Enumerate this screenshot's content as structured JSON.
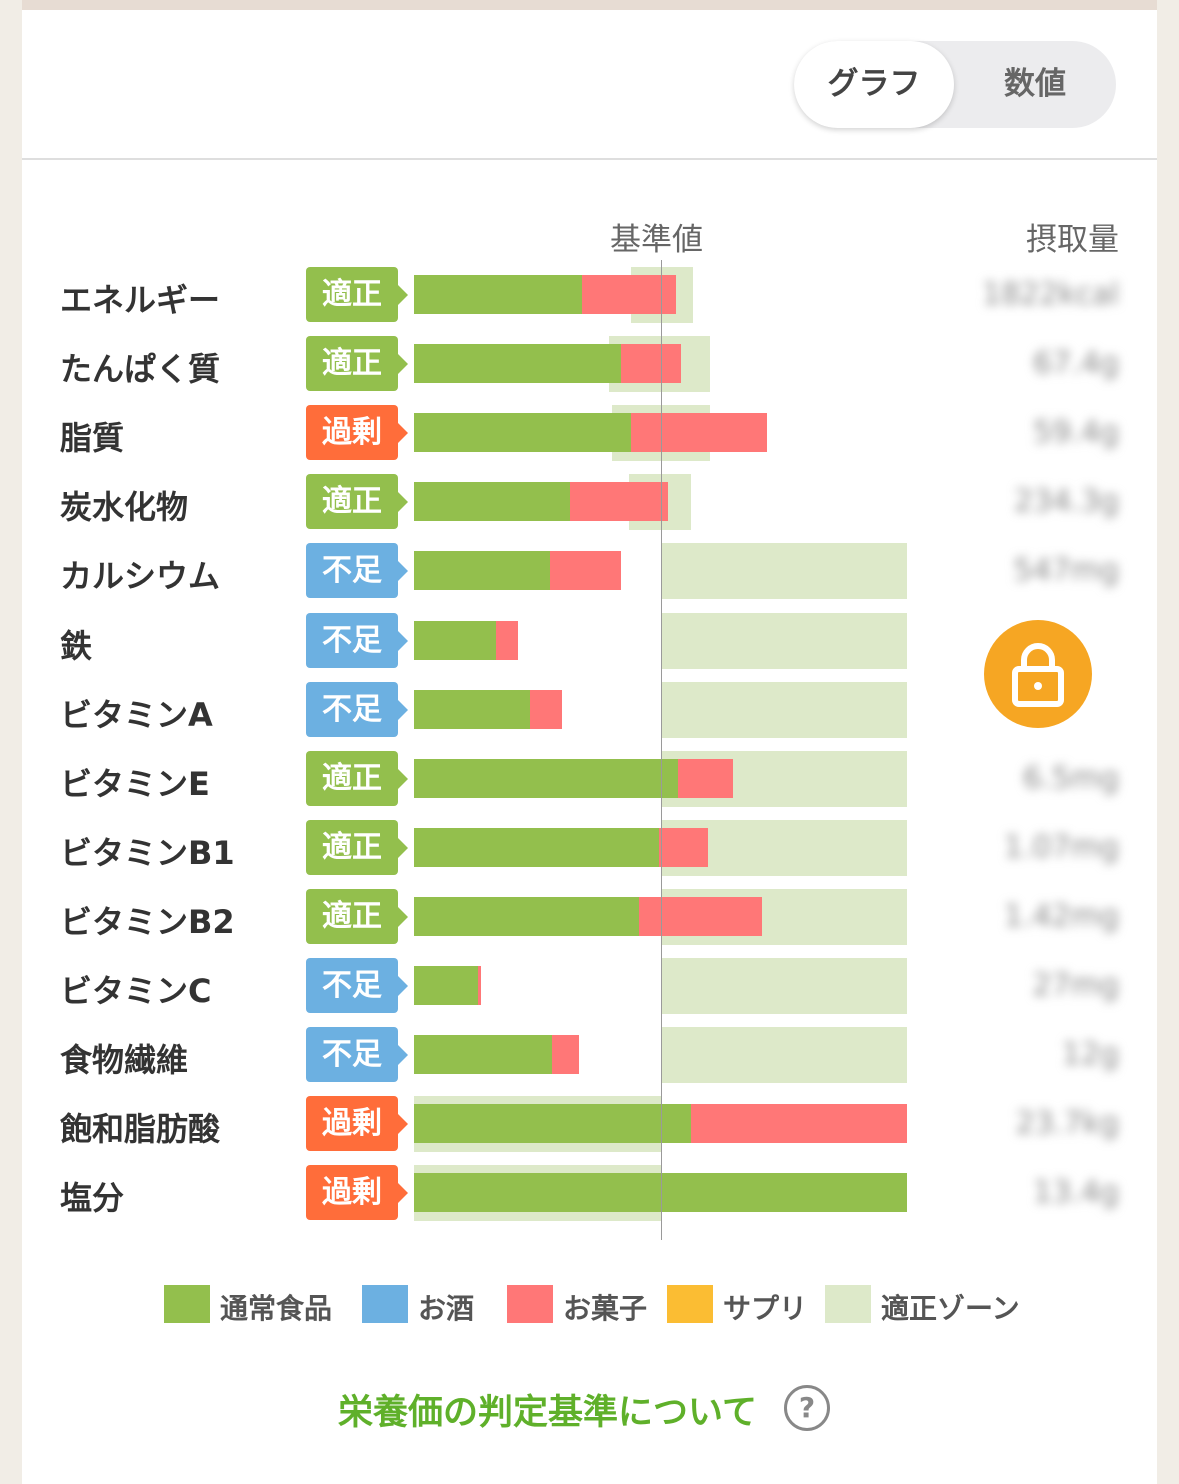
{
  "toggle": {
    "graph": "グラフ",
    "number": "数値",
    "selected": "グラフ"
  },
  "headers": {
    "standard": "基準値",
    "intake": "摂取量"
  },
  "status_colors": {
    "適正": "#93bf4d",
    "過剰": "#ff6d3a",
    "不足": "#6cb0e1"
  },
  "chart_data": {
    "type": "bar",
    "orientation": "horizontal",
    "stacked": true,
    "reference_line": "基準値",
    "categories": [
      "エネルギー",
      "たんぱく質",
      "脂質",
      "炭水化物",
      "カルシウム",
      "鉄",
      "ビタミンA",
      "ビタミンE",
      "ビタミンB1",
      "ビタミンB2",
      "ビタミンC",
      "食物繊維",
      "飽和脂肪酸",
      "塩分"
    ],
    "status": [
      "適正",
      "適正",
      "過剰",
      "適正",
      "不足",
      "不足",
      "不足",
      "適正",
      "適正",
      "適正",
      "不足",
      "不足",
      "過剰",
      "過剰"
    ],
    "intake": [
      "1822kcal",
      "67.4g",
      "59.4g",
      "234.3g",
      "547mg",
      "",
      "",
      "6.5mg",
      "1.07mg",
      "1.42mg",
      "27mg",
      "12g",
      "23.7kg",
      "13.4g"
    ],
    "units": "percent of standard value",
    "series": [
      {
        "name": "通常食品",
        "color": "#93bf4d",
        "values": [
          68,
          84,
          88,
          63,
          55,
          33,
          47,
          107,
          99,
          91,
          26,
          56,
          112,
          200
        ]
      },
      {
        "name": "お酒",
        "color": "#6cb0e1",
        "values": [
          0,
          0,
          0,
          0,
          0,
          0,
          0,
          0,
          0,
          0,
          0,
          0,
          0,
          0
        ]
      },
      {
        "name": "お菓子",
        "color": "#ff7777",
        "values": [
          38,
          24,
          55,
          40,
          29,
          9,
          13,
          22,
          20,
          50,
          1,
          11,
          88,
          0
        ]
      },
      {
        "name": "サプリ",
        "color": "#fbbd33",
        "values": [
          0,
          0,
          0,
          0,
          0,
          0,
          0,
          0,
          0,
          0,
          0,
          0,
          0,
          0
        ]
      }
    ],
    "appropriate_zone": [
      [
        88,
        113
      ],
      [
        79,
        120
      ],
      [
        80,
        120
      ],
      [
        87,
        112
      ],
      [
        100,
        200
      ],
      [
        100,
        200
      ],
      [
        100,
        200
      ],
      [
        100,
        200
      ],
      [
        100,
        200
      ],
      [
        100,
        200
      ],
      [
        100,
        200
      ],
      [
        100,
        200
      ],
      [
        0,
        100
      ],
      [
        0,
        100
      ]
    ],
    "legend": [
      "通常食品",
      "お酒",
      "お菓子",
      "サプリ",
      "適正ゾーン"
    ],
    "legend_colors": [
      "#93bf4d",
      "#6cb0e1",
      "#ff7777",
      "#fbbd33",
      "#dde9c9"
    ]
  },
  "footer": {
    "criteria_link": "栄養価の判定基準について",
    "help": "?"
  }
}
